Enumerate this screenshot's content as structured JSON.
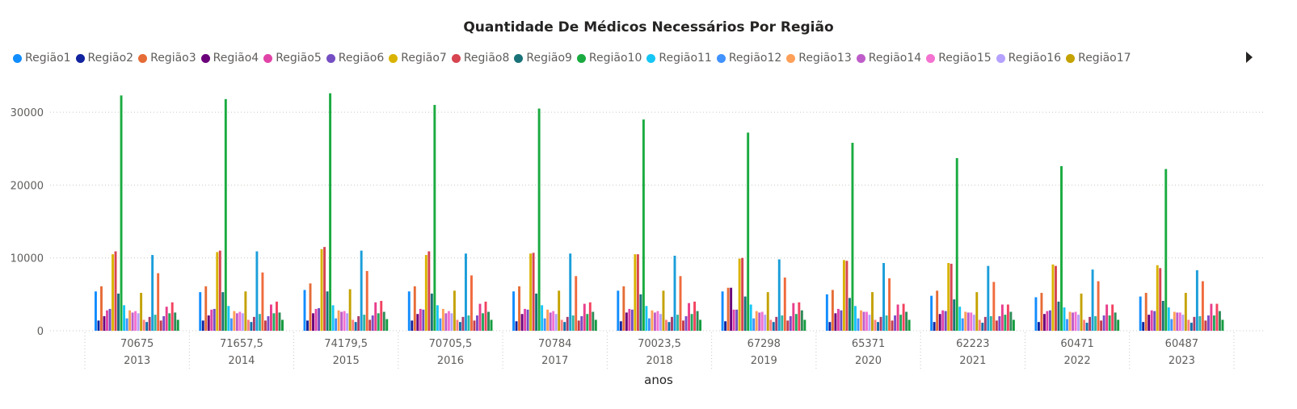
{
  "chart_data": {
    "type": "bar",
    "title": "Quantidade De Médicos Necessários Por Região",
    "xlabel": "anos",
    "ylabel": "",
    "ylim": [
      0,
      33000
    ],
    "yticks": [
      "0",
      "10000",
      "20000",
      "30000"
    ],
    "ytick_values": [
      0,
      10000,
      20000,
      30000
    ],
    "grid": true,
    "legend_position": "top",
    "categories": [
      "2013",
      "2014",
      "2015",
      "2016",
      "2017",
      "2018",
      "2019",
      "2020",
      "2021",
      "2022",
      "2023"
    ],
    "category_totals": [
      "70675",
      "71657,5",
      "74179,5",
      "70705,5",
      "70784",
      "70023,5",
      "67298",
      "65371",
      "62223",
      "60471",
      "60487"
    ],
    "series": [
      {
        "name": "Região1",
        "color": "#118DFF",
        "values": [
          5400,
          5300,
          5600,
          5400,
          5400,
          5500,
          5400,
          5000,
          4800,
          4600,
          4700
        ]
      },
      {
        "name": "Região2",
        "color": "#12239E",
        "values": [
          1400,
          1400,
          1400,
          1400,
          1300,
          1300,
          1300,
          1200,
          1200,
          1200,
          1200
        ]
      },
      {
        "name": "Região3",
        "color": "#E66C37",
        "values": [
          6100,
          6100,
          6500,
          6100,
          6100,
          6100,
          5900,
          5600,
          5500,
          5200,
          5200
        ]
      },
      {
        "name": "Região4",
        "color": "#6B007B",
        "values": [
          2000,
          2100,
          2400,
          2300,
          2300,
          2500,
          5900,
          2400,
          2300,
          2300,
          2200
        ]
      },
      {
        "name": "Região5",
        "color": "#E044A7",
        "values": [
          2800,
          2900,
          3000,
          3000,
          3000,
          3000,
          2900,
          3000,
          2800,
          2700,
          2800
        ]
      },
      {
        "name": "Região6",
        "color": "#744EC2",
        "values": [
          3000,
          3000,
          3100,
          2900,
          2900,
          2900,
          2900,
          2800,
          2700,
          2800,
          2700
        ]
      },
      {
        "name": "Região7",
        "color": "#D9B300",
        "values": [
          10500,
          10800,
          11200,
          10400,
          10600,
          10500,
          9900,
          9700,
          9300,
          9100,
          9000
        ]
      },
      {
        "name": "Região8",
        "color": "#D64550",
        "values": [
          10900,
          11000,
          11500,
          10900,
          10700,
          10500,
          10000,
          9600,
          9200,
          8900,
          8600
        ]
      },
      {
        "name": "Região9",
        "color": "#197278",
        "values": [
          5100,
          5300,
          5400,
          5100,
          5100,
          5000,
          4700,
          4500,
          4300,
          4000,
          4100
        ]
      },
      {
        "name": "Região10",
        "color": "#1AAB40",
        "values": [
          32300,
          31800,
          32600,
          31000,
          30500,
          29000,
          27200,
          25800,
          23700,
          22600,
          22200
        ]
      },
      {
        "name": "Região11",
        "color": "#15C6F4",
        "values": [
          3500,
          3400,
          3500,
          3500,
          3500,
          3400,
          3600,
          3400,
          3300,
          3200,
          3200
        ]
      },
      {
        "name": "Região12",
        "color": "#4092FF",
        "values": [
          1700,
          1700,
          1700,
          1700,
          1700,
          1700,
          1700,
          1700,
          1700,
          1600,
          1600
        ]
      },
      {
        "name": "Região13",
        "color": "#FFA058",
        "values": [
          2800,
          2700,
          2800,
          3000,
          2900,
          2800,
          2700,
          2800,
          2600,
          2600,
          2600
        ]
      },
      {
        "name": "Região14",
        "color": "#BE5DC9",
        "values": [
          2500,
          2400,
          2600,
          2400,
          2500,
          2500,
          2500,
          2600,
          2500,
          2500,
          2500
        ]
      },
      {
        "name": "Região15",
        "color": "#F472D0",
        "values": [
          2700,
          2600,
          2700,
          2700,
          2700,
          2700,
          2600,
          2600,
          2500,
          2600,
          2500
        ]
      },
      {
        "name": "Região16",
        "color": "#B5A1FF",
        "values": [
          2400,
          2400,
          2400,
          2400,
          2300,
          2300,
          2200,
          2200,
          2200,
          2200,
          2200
        ]
      },
      {
        "name": "Região17",
        "color": "#C4A200",
        "values": [
          5200,
          5400,
          5700,
          5500,
          5500,
          5500,
          5300,
          5300,
          5300,
          5100,
          5200
        ]
      },
      {
        "name": "",
        "color": "#FF8080",
        "values": [
          1500,
          1500,
          1500,
          1500,
          1500,
          1500,
          1500,
          1500,
          1500,
          1500,
          1500
        ]
      },
      {
        "name": "",
        "color": "#0F6EA9",
        "values": [
          1200,
          1200,
          1200,
          1200,
          1200,
          1200,
          1200,
          1200,
          1100,
          1100,
          1100
        ]
      },
      {
        "name": "",
        "color": "#A83D6B",
        "values": [
          1900,
          1900,
          2000,
          1900,
          1900,
          1900,
          1900,
          1900,
          1900,
          1900,
          1900
        ]
      },
      {
        "name": "",
        "color": "#1A9EDA",
        "values": [
          10400,
          10900,
          11000,
          10600,
          10600,
          10300,
          9800,
          9300,
          8900,
          8400,
          8300
        ]
      },
      {
        "name": "",
        "color": "#2FB7A2",
        "values": [
          2200,
          2300,
          2200,
          2100,
          2100,
          2200,
          2100,
          2100,
          2000,
          2000,
          2000
        ]
      },
      {
        "name": "",
        "color": "#F06A3C",
        "values": [
          7900,
          8000,
          8200,
          7600,
          7500,
          7500,
          7300,
          7200,
          6700,
          6800,
          6800
        ]
      },
      {
        "name": "",
        "color": "#C23A4E",
        "values": [
          1400,
          1400,
          1500,
          1400,
          1400,
          1400,
          1400,
          1400,
          1400,
          1400,
          1400
        ]
      },
      {
        "name": "",
        "color": "#7D4BC4",
        "values": [
          2000,
          2000,
          2100,
          2100,
          2000,
          2000,
          2000,
          2100,
          2000,
          2100,
          2100
        ]
      },
      {
        "name": "",
        "color": "#E83E8C",
        "values": [
          3300,
          3600,
          3900,
          3700,
          3700,
          3800,
          3800,
          3600,
          3600,
          3600,
          3700
        ]
      },
      {
        "name": "",
        "color": "#23A75E",
        "values": [
          2400,
          2400,
          2400,
          2400,
          2300,
          2300,
          2300,
          2200,
          2200,
          2100,
          2100
        ]
      },
      {
        "name": "",
        "color": "#F2425F",
        "values": [
          3900,
          4000,
          4100,
          4000,
          3900,
          4000,
          3900,
          3700,
          3600,
          3600,
          3700
        ]
      },
      {
        "name": "",
        "color": "#2E8B57",
        "values": [
          2500,
          2500,
          2600,
          2600,
          2600,
          2700,
          2800,
          2600,
          2600,
          2500,
          2700
        ]
      },
      {
        "name": "",
        "color": "#159C40",
        "values": [
          1500,
          1500,
          1600,
          1500,
          1500,
          1500,
          1500,
          1500,
          1500,
          1500,
          1500
        ]
      }
    ]
  },
  "legend": {
    "items": [
      {
        "label": "Região1",
        "color": "#118DFF"
      },
      {
        "label": "Região2",
        "color": "#12239E"
      },
      {
        "label": "Região3",
        "color": "#E66C37"
      },
      {
        "label": "Região4",
        "color": "#6B007B"
      },
      {
        "label": "Região5",
        "color": "#E044A7"
      },
      {
        "label": "Região6",
        "color": "#744EC2"
      },
      {
        "label": "Região7",
        "color": "#D9B300"
      },
      {
        "label": "Região8",
        "color": "#D64550"
      },
      {
        "label": "Região9",
        "color": "#197278"
      },
      {
        "label": "Região10",
        "color": "#1AAB40"
      },
      {
        "label": "Região11",
        "color": "#15C6F4"
      },
      {
        "label": "Região12",
        "color": "#4092FF"
      },
      {
        "label": "Região13",
        "color": "#FFA058"
      },
      {
        "label": "Região14",
        "color": "#BE5DC9"
      },
      {
        "label": "Região15",
        "color": "#F472D0"
      },
      {
        "label": "Região16",
        "color": "#B5A1FF"
      },
      {
        "label": "Região17",
        "color": "#C4A200"
      }
    ],
    "next_icon": "triangle-right-icon"
  }
}
